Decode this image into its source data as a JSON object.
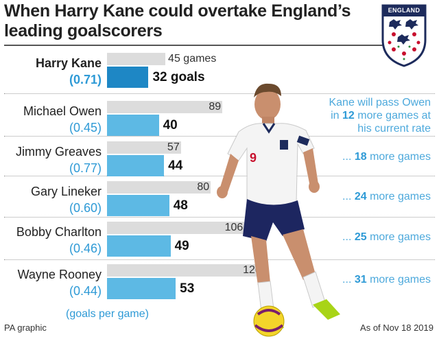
{
  "title_line1": "When Harry Kane could overtake England’s",
  "title_line2": "leading goalscorers",
  "badge_text": "ENGLAND",
  "unit_label": "(goals per game)",
  "source": "PA graphic",
  "date": "As of Nov 18 2019",
  "first_note": {
    "pre": "Kane will pass Owen",
    "in": "in",
    "number": "12",
    "post": "more games at",
    "line3": "his current rate"
  },
  "colors": {
    "games_bar": "#dcdcdc",
    "goals_bar": "#5db9e4",
    "kane_goals_bar": "#1e87c5",
    "note_text": "#4da9dc"
  },
  "player_image": "footballer-in-white-england-kit",
  "chart_data": {
    "type": "bar",
    "title": "When Harry Kane could overtake England’s leading goalscorers",
    "categories": [
      "Harry Kane",
      "Michael Owen",
      "Jimmy Greaves",
      "Gary Lineker",
      "Bobby Charlton",
      "Wayne Rooney"
    ],
    "rates": [
      "(0.71)",
      "(0.45)",
      "(0.77)",
      "(0.60)",
      "(0.46)",
      "(0.44)"
    ],
    "series": [
      {
        "name": "games",
        "values": [
          45,
          89,
          57,
          80,
          106,
          120
        ]
      },
      {
        "name": "goals",
        "values": [
          32,
          40,
          44,
          48,
          49,
          53
        ]
      }
    ],
    "games_labels": [
      "45 games",
      "89",
      "57",
      "80",
      "106",
      "120"
    ],
    "goal_labels": [
      "32 goals",
      "40",
      "44",
      "48",
      "49",
      "53"
    ],
    "games_to_pass": [
      null,
      12,
      18,
      24,
      25,
      31
    ],
    "more_games_prefix": "...",
    "more_games_suffix": "more games",
    "unit": "(goals per game)"
  }
}
